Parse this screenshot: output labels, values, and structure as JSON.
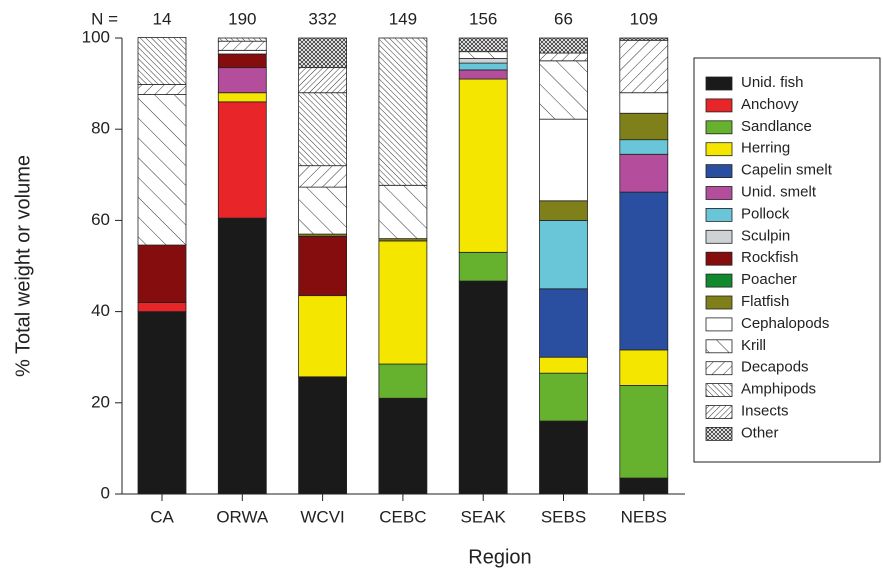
{
  "chart_data": {
    "type": "stacked-bar",
    "x_label": "Region",
    "y_label": "% Total weight or volume",
    "n_label": "N =",
    "n_values": [
      14,
      190,
      332,
      149,
      156,
      66,
      109
    ],
    "categories": [
      "CA",
      "ORWA",
      "WCVI",
      "CEBC",
      "SEAK",
      "SEBS",
      "NEBS"
    ],
    "ylim": [
      0,
      100
    ],
    "yticks": [
      0,
      20,
      40,
      60,
      80,
      100
    ],
    "series": [
      {
        "name": "Unid. fish",
        "color": "#1a1a1a",
        "values": [
          40,
          60.5,
          25.7,
          21,
          46.7,
          16,
          3.5
        ]
      },
      {
        "name": "Anchovy",
        "color": "#e8262a",
        "values": [
          2,
          25.5,
          0,
          0,
          0,
          0,
          0
        ]
      },
      {
        "name": "Sandlance",
        "color": "#66b22e",
        "values": [
          0,
          0,
          0,
          7.5,
          6.3,
          10.5,
          20.3
        ]
      },
      {
        "name": "Herring",
        "color": "#f5e600",
        "values": [
          0,
          2,
          17.8,
          27,
          38,
          3.5,
          7.8
        ]
      },
      {
        "name": "Capelin smelt",
        "color": "#2a4fa0",
        "values": [
          0,
          0,
          0,
          0,
          0,
          15,
          34.6
        ]
      },
      {
        "name": "Unid. smelt",
        "color": "#b34d9c",
        "values": [
          0,
          5.5,
          0,
          0,
          2,
          0,
          8.3
        ]
      },
      {
        "name": "Pollock",
        "color": "#68c6d8",
        "values": [
          0,
          0,
          0,
          0,
          1.5,
          15,
          3.2
        ]
      },
      {
        "name": "Sculpin",
        "color": "#cfd2d4",
        "values": [
          0,
          0,
          0,
          0,
          1,
          0,
          0
        ]
      },
      {
        "name": "Rockfish",
        "color": "#850d0d",
        "values": [
          12.6,
          3,
          13,
          0,
          0,
          0,
          0
        ]
      },
      {
        "name": "Poacher",
        "color": "#118a2e",
        "values": [
          0,
          0,
          0,
          0,
          0,
          0,
          0
        ]
      },
      {
        "name": "Flatfish",
        "color": "#80801a",
        "values": [
          0,
          0,
          0.5,
          0.5,
          0,
          4.3,
          5.8
        ]
      },
      {
        "name": "Cephalopods",
        "color": "#ffffff",
        "values": [
          0,
          0.8,
          0,
          0,
          0,
          17.9,
          4.5
        ]
      },
      {
        "name": "Krill",
        "color": "#ffffff",
        "pattern": "krill",
        "values": [
          33,
          0,
          10.3,
          11.7,
          1.5,
          12.8,
          0
        ]
      },
      {
        "name": "Decapods",
        "color": "#ffffff",
        "pattern": "decapods",
        "values": [
          2.2,
          2,
          4.7,
          0,
          0,
          1.7,
          11.5
        ]
      },
      {
        "name": "Amphipods",
        "color": "#ffffff",
        "pattern": "amphipods",
        "values": [
          10.3,
          0.7,
          16,
          32.3,
          0,
          0,
          0
        ]
      },
      {
        "name": "Insects",
        "color": "#ffffff",
        "pattern": "insects",
        "values": [
          0,
          0,
          5.5,
          0,
          0,
          0,
          0
        ]
      },
      {
        "name": "Other",
        "color": "#ffffff",
        "pattern": "other",
        "values": [
          0,
          0,
          6.5,
          0,
          3,
          3.3,
          0.5
        ]
      }
    ]
  }
}
